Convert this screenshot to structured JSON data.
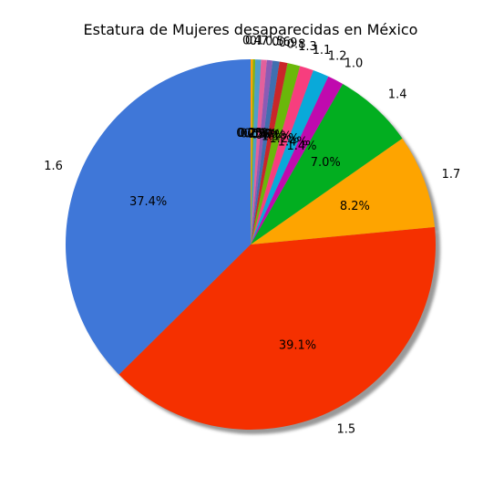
{
  "chart_data": {
    "type": "pie",
    "title": "Estatura de Mujeres desaparecidas en México",
    "start_angle_deg": 90,
    "direction": "counterclockwise",
    "shadow": true,
    "slices": [
      {
        "label": "1.6",
        "value": 37.4,
        "pct_label": "37.4%",
        "color": "#3f77d8"
      },
      {
        "label": "1.5",
        "value": 39.1,
        "pct_label": "39.1%",
        "color": "#f53000"
      },
      {
        "label": "1.7",
        "value": 8.2,
        "pct_label": "8.2%",
        "color": "#fea400"
      },
      {
        "label": "1.4",
        "value": 7.0,
        "pct_label": "7.0%",
        "color": "#02ae20"
      },
      {
        "label": "1.0",
        "value": 1.4,
        "pct_label": "1.4%",
        "color": "#c00aae"
      },
      {
        "label": "1.2",
        "value": 1.4,
        "pct_label": "1.4%",
        "color": "#09a9d9"
      },
      {
        "label": "1.1",
        "value": 1.2,
        "pct_label": "1.2%",
        "color": "#f73e7e"
      },
      {
        "label": "1.3",
        "value": 1.1,
        "pct_label": "1.1%",
        "color": "#6ab80a"
      },
      {
        "label": "0.8",
        "value": 0.7,
        "pct_label": "0.7%",
        "color": "#c9262a"
      },
      {
        "label": "0.9",
        "value": 0.6,
        "pct_label": "0.6%",
        "color": "#3f6fb0"
      },
      {
        "label": "0.6",
        "value": 0.5,
        "pct_label": "0.5%",
        "color": "#8b5bb5"
      },
      {
        "label": "0.5",
        "value": 0.5,
        "pct_label": "0.5%",
        "color": "#e3609c"
      },
      {
        "label": "0.7",
        "value": 0.5,
        "pct_label": "0.5%",
        "color": "#4d9fc8"
      },
      {
        "label": "0.1",
        "value": 0.2,
        "pct_label": "0.2%",
        "color": "#7fb214"
      },
      {
        "label": "0.4",
        "value": 0.2,
        "pct_label": "0.2%",
        "color": "#ffa600"
      }
    ]
  }
}
